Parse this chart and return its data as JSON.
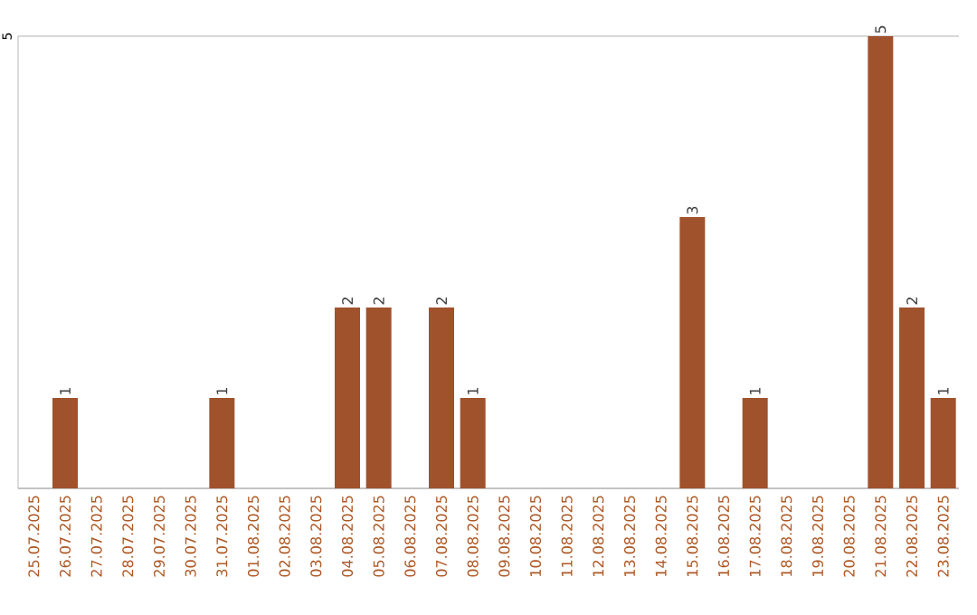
{
  "chart_data": {
    "type": "bar",
    "categories": [
      "25.07.2025",
      "26.07.2025",
      "27.07.2025",
      "28.07.2025",
      "29.07.2025",
      "30.07.2025",
      "31.07.2025",
      "01.08.2025",
      "02.08.2025",
      "03.08.2025",
      "04.08.2025",
      "05.08.2025",
      "06.08.2025",
      "07.08.2025",
      "08.08.2025",
      "09.08.2025",
      "10.08.2025",
      "11.08.2025",
      "12.08.2025",
      "13.08.2025",
      "14.08.2025",
      "15.08.2025",
      "16.08.2025",
      "17.08.2025",
      "18.08.2025",
      "19.08.2025",
      "20.08.2025",
      "21.08.2025",
      "22.08.2025",
      "23.08.2025"
    ],
    "values": [
      0,
      1,
      0,
      0,
      0,
      0,
      1,
      0,
      0,
      0,
      2,
      2,
      0,
      2,
      1,
      0,
      0,
      0,
      0,
      0,
      0,
      3,
      0,
      1,
      0,
      0,
      0,
      5,
      2,
      1
    ],
    "value_labels": [
      null,
      "1",
      null,
      null,
      null,
      null,
      "1",
      null,
      null,
      null,
      "2",
      "2",
      null,
      "2",
      "1",
      null,
      null,
      null,
      null,
      null,
      null,
      "3",
      null,
      "1",
      null,
      null,
      null,
      "5",
      "2",
      "1"
    ],
    "color": "#a0522d",
    "ylim": [
      0,
      5
    ],
    "yticks": [
      {
        "value": 0,
        "label": null
      },
      5
    ],
    "grid": "y"
  }
}
